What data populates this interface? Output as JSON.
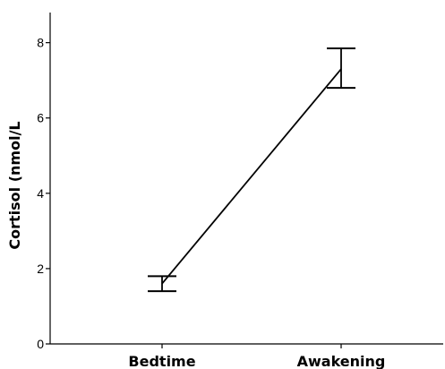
{
  "chart_data": {
    "type": "line",
    "title": "",
    "xlabel": "",
    "ylabel": "Cortisol (nmol/L",
    "categories": [
      "Bedtime",
      "Awakening"
    ],
    "series": [
      {
        "values": [
          1.6,
          7.3
        ],
        "error_low": [
          1.4,
          6.8
        ],
        "error_high": [
          1.8,
          7.85
        ]
      }
    ],
    "ylim": [
      0,
      8.8
    ],
    "yticks": [
      0,
      2,
      4,
      6,
      8
    ],
    "grid": false,
    "legend": "none",
    "colors": {
      "line": "#000000",
      "axis": "#000000",
      "background": "#ffffff"
    }
  }
}
